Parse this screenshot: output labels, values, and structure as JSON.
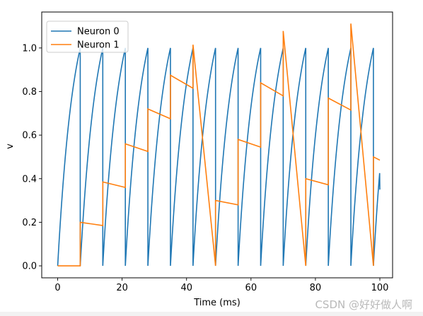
{
  "chart_data": {
    "type": "line",
    "xlabel": "Time (ms)",
    "ylabel": "v",
    "xlim": [
      -4.95,
      103.95
    ],
    "ylim": [
      -0.055,
      1.165
    ],
    "x_ticks": [
      0,
      20,
      40,
      60,
      80,
      100
    ],
    "x_tick_labels": [
      "0",
      "20",
      "40",
      "60",
      "80",
      "100"
    ],
    "y_ticks": [
      0.0,
      0.2,
      0.4,
      0.6,
      0.8,
      1.0
    ],
    "y_tick_labels": [
      "0.0",
      "0.2",
      "0.4",
      "0.6",
      "0.8",
      "1.0"
    ],
    "grid": false,
    "legend_position": "upper-left",
    "series": [
      {
        "name": "Neuron 0",
        "color": "#1f77b4",
        "x": [
          0,
          7,
          7,
          14,
          14,
          21,
          21,
          28,
          28,
          35,
          35,
          42,
          42,
          49,
          49,
          56,
          56,
          63,
          63,
          70,
          70,
          77,
          77,
          84,
          84,
          91,
          91,
          98,
          98,
          100
        ],
        "y": [
          0,
          1,
          0,
          1,
          0,
          1,
          0,
          1,
          0,
          1,
          0,
          1,
          0,
          1,
          0,
          1,
          0,
          1,
          0,
          1,
          0,
          1,
          0,
          1,
          0,
          1,
          0,
          1,
          0,
          0.35
        ],
        "shape": "exp-rise-reset",
        "tau": 5.0
      },
      {
        "name": "Neuron 1",
        "color": "#ff7f0e",
        "x": [
          0,
          7,
          7,
          14,
          14,
          21,
          21,
          28,
          28,
          35,
          35,
          42,
          42,
          49,
          49,
          56,
          56,
          63,
          63,
          70,
          70,
          77,
          77,
          84,
          84,
          91,
          91,
          98,
          98,
          100
        ],
        "y": [
          0,
          0,
          0.2,
          0.185,
          0.385,
          0.36,
          0.56,
          0.525,
          0.72,
          0.675,
          0.875,
          0.815,
          1.015,
          0,
          0.3,
          0.28,
          0.58,
          0.545,
          0.84,
          0.78,
          1.078,
          0,
          0.4,
          0.372,
          0.77,
          0.715,
          1.112,
          0,
          0.5,
          0.485
        ]
      }
    ]
  },
  "watermark": "CSDN @好好做人啊"
}
